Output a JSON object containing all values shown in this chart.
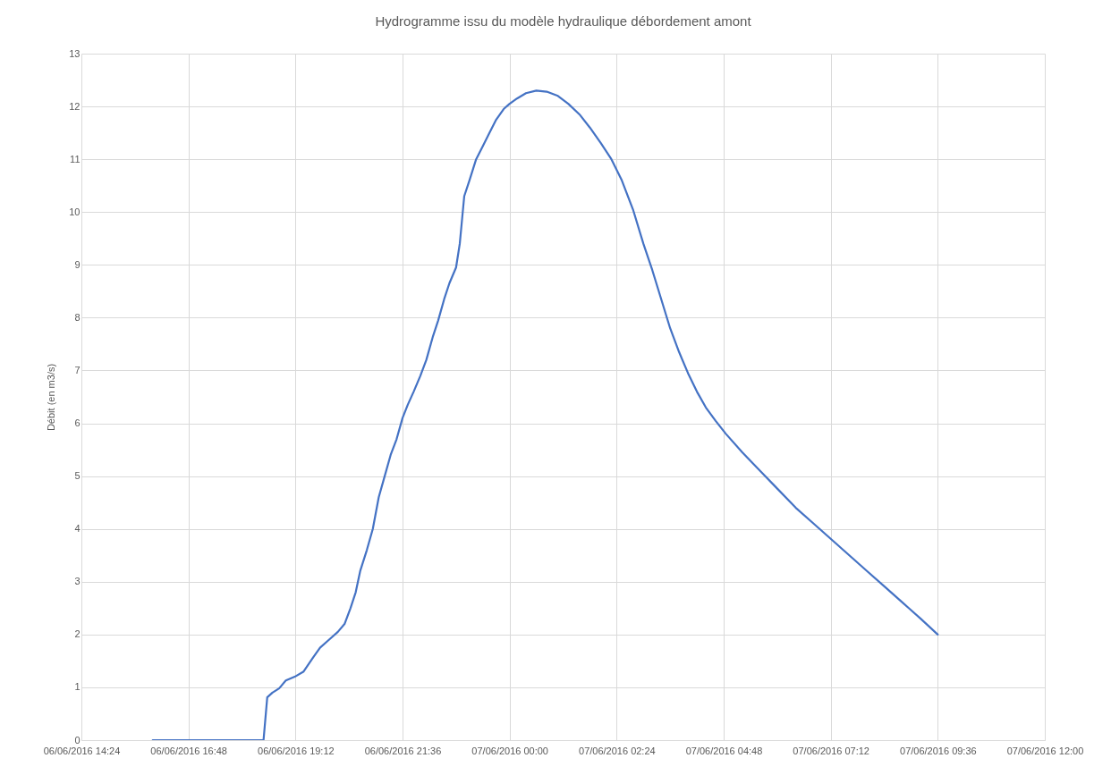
{
  "chart_data": {
    "type": "line",
    "title": "Hydrogramme issu du modèle hydraulique débordement amont",
    "ylabel": "Débit (en m3/s)",
    "x": [
      "2016-06-06T16:00",
      "2016-06-06T18:29",
      "2016-06-06T18:34",
      "2016-06-06T18:41",
      "2016-06-06T18:50",
      "2016-06-06T18:59",
      "2016-06-06T19:11",
      "2016-06-06T19:23",
      "2016-06-06T19:35",
      "2016-06-06T19:45",
      "2016-06-06T19:57",
      "2016-06-06T20:09",
      "2016-06-06T20:18",
      "2016-06-06T20:26",
      "2016-06-06T20:33",
      "2016-06-06T20:39",
      "2016-06-06T20:48",
      "2016-06-06T20:56",
      "2016-06-06T21:04",
      "2016-06-06T21:12",
      "2016-06-06T21:20",
      "2016-06-06T21:28",
      "2016-06-06T21:36",
      "2016-06-06T21:43",
      "2016-06-06T21:51",
      "2016-06-06T22:00",
      "2016-06-06T22:08",
      "2016-06-06T22:17",
      "2016-06-06T22:24",
      "2016-06-06T22:32",
      "2016-06-06T22:39",
      "2016-06-06T22:48",
      "2016-06-06T22:53",
      "2016-06-06T22:59",
      "2016-06-06T23:06",
      "2016-06-06T23:15",
      "2016-06-06T23:24",
      "2016-06-06T23:33",
      "2016-06-06T23:42",
      "2016-06-06T23:52",
      "2016-06-07T00:00",
      "2016-06-07T00:10",
      "2016-06-07T00:22",
      "2016-06-07T00:36",
      "2016-06-07T00:50",
      "2016-06-07T01:05",
      "2016-06-07T01:19",
      "2016-06-07T01:34",
      "2016-06-07T01:48",
      "2016-06-07T02:03",
      "2016-06-07T02:17",
      "2016-06-07T02:31",
      "2016-06-07T02:46",
      "2016-06-07T03:00",
      "2016-06-07T03:12",
      "2016-06-07T03:24",
      "2016-06-07T03:36",
      "2016-06-07T03:48",
      "2016-06-07T04:00",
      "2016-06-07T04:12",
      "2016-06-07T04:24",
      "2016-06-07T04:37",
      "2016-06-07T04:51",
      "2016-06-07T05:13",
      "2016-06-07T05:37",
      "2016-06-07T06:01",
      "2016-06-07T06:25",
      "2016-06-07T06:49",
      "2016-06-07T07:13",
      "2016-06-07T07:37",
      "2016-06-07T08:01",
      "2016-06-07T08:25",
      "2016-06-07T08:49",
      "2016-06-07T09:13",
      "2016-06-07T09:36"
    ],
    "series": [
      {
        "color": "#4472c4",
        "values": [
          0,
          0,
          0.81,
          0.9,
          0.98,
          1.13,
          1.2,
          1.3,
          1.55,
          1.75,
          1.9,
          2.05,
          2.2,
          2.5,
          2.8,
          3.2,
          3.6,
          4.0,
          4.6,
          5.0,
          5.4,
          5.7,
          6.1,
          6.35,
          6.6,
          6.9,
          7.2,
          7.65,
          7.95,
          8.35,
          8.65,
          8.95,
          9.4,
          10.3,
          10.6,
          11.0,
          11.25,
          11.5,
          11.75,
          11.95,
          12.05,
          12.15,
          12.25,
          12.3,
          12.28,
          12.2,
          12.05,
          11.85,
          11.6,
          11.3,
          11.0,
          10.6,
          10.05,
          9.4,
          8.9,
          8.35,
          7.8,
          7.35,
          6.95,
          6.6,
          6.3,
          6.05,
          5.8,
          5.45,
          5.1,
          4.75,
          4.4,
          4.1,
          3.8,
          3.5,
          3.2,
          2.9,
          2.6,
          2.3,
          2.0
        ]
      }
    ],
    "xlim": [
      "2016-06-06T14:24",
      "2016-06-07T12:00"
    ],
    "xticks": [
      {
        "value": "2016-06-06T14:24",
        "label": "06/06/2016 14:24"
      },
      {
        "value": "2016-06-06T16:48",
        "label": "06/06/2016 16:48"
      },
      {
        "value": "2016-06-06T19:12",
        "label": "06/06/2016 19:12"
      },
      {
        "value": "2016-06-06T21:36",
        "label": "06/06/2016 21:36"
      },
      {
        "value": "2016-06-07T00:00",
        "label": "07/06/2016 00:00"
      },
      {
        "value": "2016-06-07T02:24",
        "label": "07/06/2016 02:24"
      },
      {
        "value": "2016-06-07T04:48",
        "label": "07/06/2016 04:48"
      },
      {
        "value": "2016-06-07T07:12",
        "label": "07/06/2016 07:12"
      },
      {
        "value": "2016-06-07T09:36",
        "label": "07/06/2016 09:36"
      },
      {
        "value": "2016-06-07T12:00",
        "label": "07/06/2016 12:00"
      }
    ],
    "ylim": [
      0,
      13
    ],
    "yticks": [
      0,
      1,
      2,
      3,
      4,
      5,
      6,
      7,
      8,
      9,
      10,
      11,
      12,
      13
    ],
    "grid": true,
    "marker": "none",
    "line_style": "solid"
  }
}
